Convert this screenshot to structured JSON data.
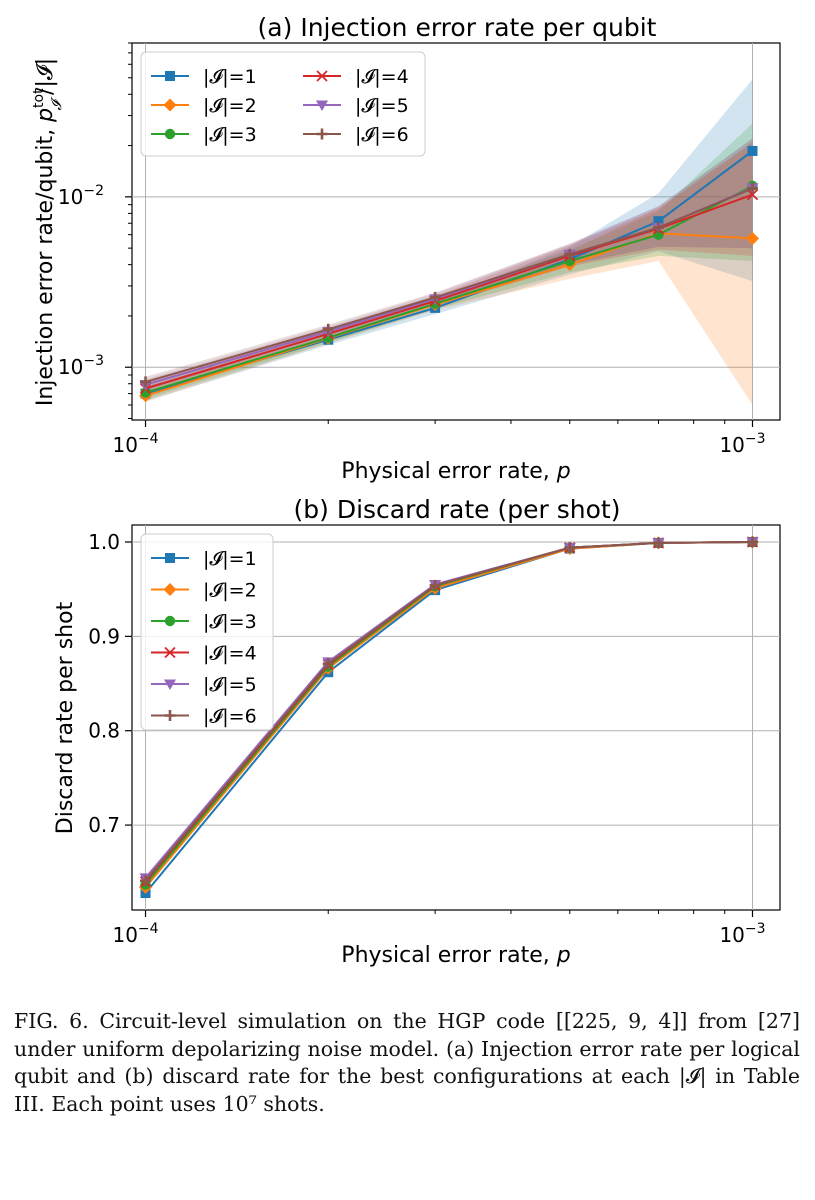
{
  "chart_data": [
    {
      "type": "line",
      "title": "(a) Injection error rate per qubit",
      "xlabel": "Physical error rate, p",
      "ylabel": "Injection error rate/qubit, p_I^tot/|I|",
      "xscale": "log",
      "yscale": "log",
      "xlim": [
        9.5e-05,
        0.00111
      ],
      "ylim": [
        0.00049,
        0.08
      ],
      "xticks": [
        {
          "value": 0.0001,
          "base": "10",
          "exp": "−4"
        },
        {
          "value": 0.001,
          "base": "10",
          "exp": "−3"
        }
      ],
      "yticks": [
        {
          "value": 0.001,
          "base": "10",
          "exp": "−3"
        },
        {
          "value": 0.01,
          "base": "10",
          "exp": "−2"
        }
      ],
      "grid": true,
      "legend": {
        "placement": "top-left",
        "columns": 2
      },
      "x": [
        0.0001,
        0.0002,
        0.0003,
        0.0005,
        0.0007,
        0.001
      ],
      "series": [
        {
          "name": "|𝓘|=1",
          "color": "#1f77b4",
          "marker": "square",
          "values": [
            0.0007,
            0.00145,
            0.00223,
            0.0043,
            0.0072,
            0.0186
          ],
          "lower": [
            0.00063,
            0.00135,
            0.00205,
            0.0035,
            0.0048,
            0.0032
          ],
          "upper": [
            0.00077,
            0.00157,
            0.00243,
            0.0051,
            0.0105,
            0.049
          ]
        },
        {
          "name": "|𝓘|=2",
          "color": "#ff7f0e",
          "marker": "diamond",
          "values": [
            0.00068,
            0.00148,
            0.00233,
            0.004,
            0.0061,
            0.0057
          ],
          "lower": [
            0.00063,
            0.00138,
            0.00216,
            0.0033,
            0.0042,
            0.0006
          ],
          "upper": [
            0.00074,
            0.00158,
            0.0025,
            0.0048,
            0.0086,
            0.0205
          ]
        },
        {
          "name": "|𝓘|=3",
          "color": "#2ca02c",
          "marker": "circle",
          "values": [
            0.00071,
            0.00149,
            0.00236,
            0.0042,
            0.006,
            0.0116
          ],
          "lower": [
            0.00065,
            0.00139,
            0.00219,
            0.0036,
            0.0045,
            0.0042
          ],
          "upper": [
            0.00077,
            0.0016,
            0.00253,
            0.0049,
            0.0082,
            0.027
          ]
        },
        {
          "name": "|𝓘|=4",
          "color": "#d62728",
          "marker": "x",
          "values": [
            0.00075,
            0.00157,
            0.00245,
            0.0045,
            0.0065,
            0.0103
          ],
          "lower": [
            0.00069,
            0.00147,
            0.00228,
            0.0039,
            0.0049,
            0.0045
          ],
          "upper": [
            0.00081,
            0.00168,
            0.00262,
            0.0052,
            0.0085,
            0.021
          ]
        },
        {
          "name": "|𝓘|=5",
          "color": "#9467bd",
          "marker": "triangle-down",
          "values": [
            0.00079,
            0.00162,
            0.00252,
            0.0046,
            0.0066,
            0.0113
          ],
          "lower": [
            0.00073,
            0.00152,
            0.00235,
            0.004,
            0.0051,
            0.005
          ],
          "upper": [
            0.00085,
            0.00173,
            0.0027,
            0.0053,
            0.0088,
            0.022
          ]
        },
        {
          "name": "|𝓘|=6",
          "color": "#8c564b",
          "marker": "plus",
          "values": [
            0.00082,
            0.00167,
            0.00257,
            0.0046,
            0.0066,
            0.0112
          ],
          "lower": [
            0.00076,
            0.00157,
            0.0024,
            0.004,
            0.0051,
            0.005
          ],
          "upper": [
            0.00088,
            0.00178,
            0.00274,
            0.0053,
            0.0088,
            0.022
          ]
        }
      ]
    },
    {
      "type": "line",
      "title": "(b) Discard rate (per shot)",
      "xlabel": "Physical error rate, p",
      "ylabel": "Discard rate per shot",
      "xscale": "log",
      "yscale": "linear",
      "xlim": [
        9.5e-05,
        0.00111
      ],
      "ylim": [
        0.61,
        1.018
      ],
      "xticks": [
        {
          "value": 0.0001,
          "base": "10",
          "exp": "−4"
        },
        {
          "value": 0.001,
          "base": "10",
          "exp": "−3"
        }
      ],
      "yticks": [
        {
          "value": 0.7,
          "label": "0.7"
        },
        {
          "value": 0.8,
          "label": "0.8"
        },
        {
          "value": 0.9,
          "label": "0.9"
        },
        {
          "value": 1.0,
          "label": "1.0"
        }
      ],
      "grid": true,
      "legend": {
        "placement": "top-left",
        "columns": 1
      },
      "x": [
        0.0001,
        0.0002,
        0.0003,
        0.0005,
        0.0007,
        0.001
      ],
      "series": [
        {
          "name": "|𝓘|=1",
          "color": "#1f77b4",
          "marker": "square",
          "values": [
            0.628,
            0.862,
            0.949,
            0.993,
            0.999,
            1.0
          ]
        },
        {
          "name": "|𝓘|=2",
          "color": "#ff7f0e",
          "marker": "diamond",
          "values": [
            0.634,
            0.866,
            0.951,
            0.993,
            0.999,
            1.0
          ]
        },
        {
          "name": "|𝓘|=3",
          "color": "#2ca02c",
          "marker": "circle",
          "values": [
            0.637,
            0.868,
            0.953,
            0.994,
            0.999,
            1.0
          ]
        },
        {
          "name": "|𝓘|=4",
          "color": "#d62728",
          "marker": "x",
          "values": [
            0.64,
            0.87,
            0.954,
            0.994,
            0.999,
            1.0
          ]
        },
        {
          "name": "|𝓘|=5",
          "color": "#9467bd",
          "marker": "triangle-down",
          "values": [
            0.644,
            0.873,
            0.955,
            0.994,
            0.999,
            1.0
          ]
        },
        {
          "name": "|𝓘|=6",
          "color": "#8c564b",
          "marker": "plus",
          "values": [
            0.641,
            0.871,
            0.954,
            0.994,
            0.999,
            1.0
          ]
        }
      ]
    }
  ],
  "caption": "FIG. 6.   Circuit-level simulation on the HGP code [[225, 9, 4]] from [27] under uniform depolarizing noise model. (a) Injection error rate per logical qubit and (b) discard rate for the best configurations at each |𝓘| in Table III. Each point uses 10⁷ shots."
}
